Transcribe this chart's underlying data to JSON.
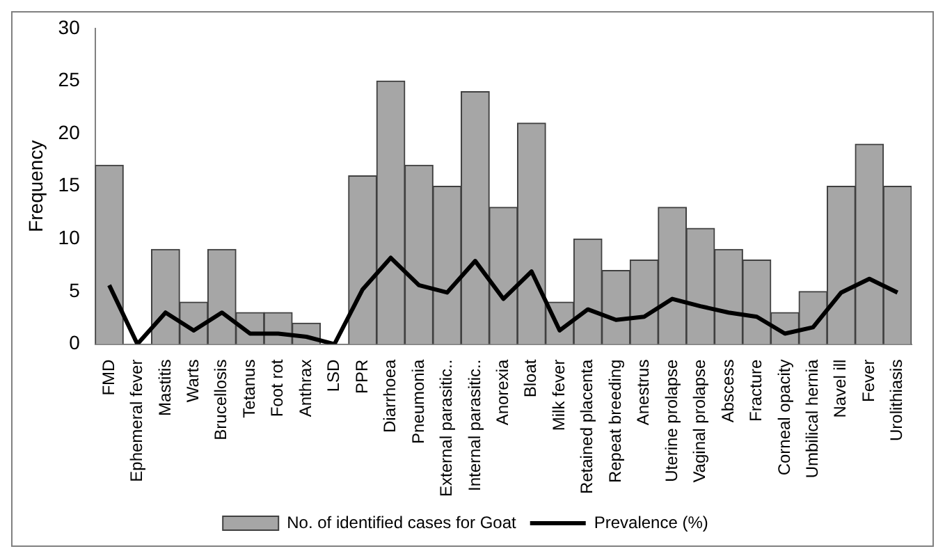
{
  "chart_data": {
    "type": "bar",
    "ylabel": "Frequency",
    "categories": [
      "FMD",
      "Ephemeral fever",
      "Mastitis",
      "Warts",
      "Brucellosis",
      "Tetanus",
      "Foot rot",
      "Anthrax",
      "LSD",
      "PPR",
      "Diarrhoea",
      "Pneumonia",
      "External parasitic..",
      "Internal parasitic..",
      "Anorexia",
      "Bloat",
      "Milk fever",
      "Retained placenta",
      "Repeat breeding",
      "Anestrus",
      "Uterine prolapse",
      "Vaginal prolapse",
      "Abscess",
      "Fracture",
      "Corneal opacity",
      "Umbilical hernia",
      "Navel ill",
      "Fever",
      "Urolithiasis"
    ],
    "series": [
      {
        "name": "No. of identified cases for Goat",
        "color": "#a6a6a6",
        "values": [
          17,
          0,
          9,
          4,
          9,
          3,
          3,
          2,
          0,
          16,
          25,
          17,
          15,
          24,
          13,
          21,
          4,
          10,
          7,
          8,
          13,
          11,
          9,
          8,
          3,
          5,
          15,
          19,
          15
        ]
      },
      {
        "name": "Prevalence (%)",
        "type": "line",
        "color": "#000000",
        "values": [
          5.6,
          0,
          3.0,
          1.3,
          3.0,
          1.0,
          1.0,
          0.7,
          0,
          5.2,
          8.2,
          5.6,
          4.9,
          7.9,
          4.3,
          6.9,
          1.3,
          3.3,
          2.3,
          2.6,
          4.3,
          3.6,
          3.0,
          2.6,
          1.0,
          1.6,
          4.9,
          6.2,
          4.9
        ]
      }
    ],
    "ylim": [
      0,
      30
    ],
    "yticks": [
      0,
      5,
      10,
      15,
      20,
      25,
      30
    ],
    "grid": false,
    "legend": "bottom",
    "marker": "none",
    "line_style": "solid"
  }
}
